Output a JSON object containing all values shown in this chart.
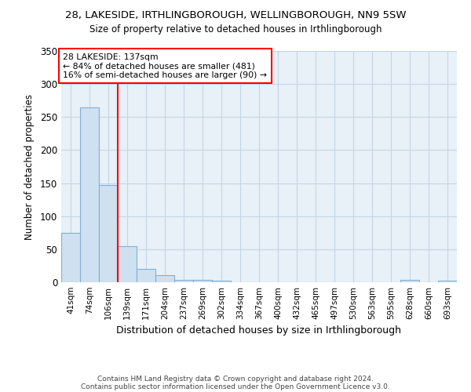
{
  "title1": "28, LAKESIDE, IRTHLINGBOROUGH, WELLINGBOROUGH, NN9 5SW",
  "title2": "Size of property relative to detached houses in Irthlingborough",
  "xlabel": "Distribution of detached houses by size in Irthlingborough",
  "ylabel": "Number of detached properties",
  "categories": [
    "41sqm",
    "74sqm",
    "106sqm",
    "139sqm",
    "171sqm",
    "204sqm",
    "237sqm",
    "269sqm",
    "302sqm",
    "334sqm",
    "367sqm",
    "400sqm",
    "432sqm",
    "465sqm",
    "497sqm",
    "530sqm",
    "563sqm",
    "595sqm",
    "628sqm",
    "660sqm",
    "693sqm"
  ],
  "values": [
    75,
    265,
    147,
    55,
    20,
    11,
    4,
    4,
    2,
    0,
    0,
    0,
    0,
    0,
    0,
    0,
    0,
    0,
    3,
    0,
    2
  ],
  "bar_color": "#cfe0f0",
  "bar_edge_color": "#7fb0d8",
  "red_line_x": 3.0,
  "annotation_line1": "28 LAKESIDE: 137sqm",
  "annotation_line2": "← 84% of detached houses are smaller (481)",
  "annotation_line3": "16% of semi-detached houses are larger (90) →",
  "annotation_box_color": "white",
  "annotation_box_edge": "red",
  "ylim": [
    0,
    350
  ],
  "yticks": [
    0,
    50,
    100,
    150,
    200,
    250,
    300,
    350
  ],
  "footer1": "Contains HM Land Registry data © Crown copyright and database right 2024.",
  "footer2": "Contains public sector information licensed under the Open Government Licence v3.0.",
  "plot_bg_color": "#e8f0f8",
  "grid_color": "#c5d5e5",
  "title1_fontsize": 9.5,
  "title2_fontsize": 8.5
}
